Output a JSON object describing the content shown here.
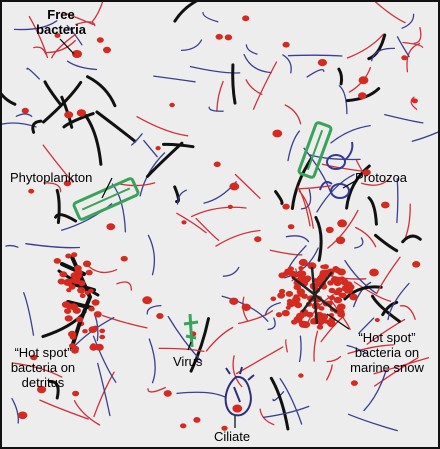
{
  "colors": {
    "background": "#ededed",
    "bacteria": "#d42a1f",
    "filament_blue": "#3a3f8f",
    "filament_red": "#d0303a",
    "filament_black": "#111111",
    "phyto": "#3aa35a",
    "hot_spot_text": "#c4201a"
  },
  "labels": {
    "free_bacteria": {
      "line1": "Free",
      "line2": "bacteria"
    },
    "phytoplankton": "Phytoplankton",
    "protozoa": "Protozoa",
    "hot_spot_detritus": {
      "title": "“Hot spot”",
      "line1": "bacteria on",
      "line2": "detritus"
    },
    "virus": "Virus",
    "hot_spot_snow": {
      "title": "“Hot spot”",
      "line1": "bacteria on",
      "line2": "marine snow"
    },
    "ciliate": "Ciliate"
  },
  "icons": [
    "bacterium-icon",
    "phytoplankton-icon",
    "protozoa-icon",
    "virus-icon",
    "ciliate-icon",
    "detritus-icon",
    "marine-snow-icon"
  ]
}
